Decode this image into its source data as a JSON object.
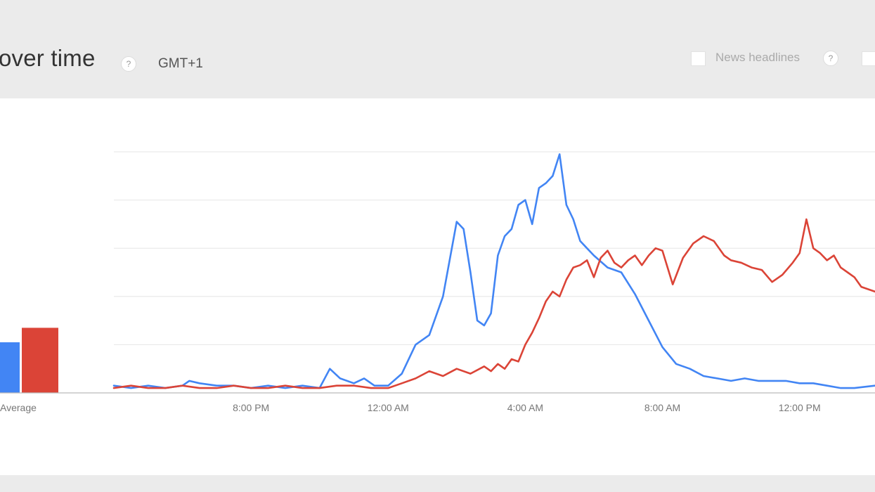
{
  "header": {
    "title": "over time",
    "help_title": "?",
    "timezone": "GMT+1",
    "news_headlines_label": "News headlines",
    "help_news": "?"
  },
  "colors": {
    "series_blue": "#4285f4",
    "series_red": "#db4437",
    "grid": "#e6e6e6",
    "axis": "#bbbbbb"
  },
  "icons": [
    "help-icon",
    "checkbox-icon"
  ],
  "chart_data": [
    {
      "type": "bar",
      "categories": [
        "Average"
      ],
      "series": [
        {
          "color": "#4285f4",
          "values": [
            21
          ]
        },
        {
          "color": "#db4437",
          "values": [
            27
          ]
        }
      ],
      "ylim": [
        0,
        100
      ]
    },
    {
      "type": "line",
      "x_unit": "hours since 4:00 PM",
      "ylim": [
        0,
        100
      ],
      "grid": "horizontal",
      "xticks": [
        {
          "x": 4,
          "label": "8:00 PM"
        },
        {
          "x": 8,
          "label": "12:00 AM"
        },
        {
          "x": 12,
          "label": "4:00 AM"
        },
        {
          "x": 16,
          "label": "8:00 AM"
        },
        {
          "x": 20,
          "label": "12:00 PM"
        }
      ],
      "xlim": [
        0,
        22.2
      ],
      "series": [
        {
          "color": "#4285f4",
          "x": [
            0.0,
            0.5,
            1.0,
            1.5,
            2.0,
            2.2,
            2.5,
            3.0,
            3.5,
            4.0,
            4.5,
            5.0,
            5.5,
            6.0,
            6.3,
            6.6,
            7.0,
            7.3,
            7.6,
            8.0,
            8.4,
            8.8,
            9.2,
            9.6,
            10.0,
            10.2,
            10.4,
            10.6,
            10.8,
            11.0,
            11.2,
            11.4,
            11.6,
            11.8,
            12.0,
            12.2,
            12.4,
            12.6,
            12.8,
            13.0,
            13.2,
            13.4,
            13.6,
            13.8,
            14.0,
            14.4,
            14.8,
            15.2,
            15.6,
            16.0,
            16.4,
            16.8,
            17.2,
            17.6,
            18.0,
            18.4,
            18.8,
            19.2,
            19.6,
            20.0,
            20.4,
            20.8,
            21.2,
            21.6,
            22.2
          ],
          "values": [
            3,
            2,
            3,
            2,
            3,
            5,
            4,
            3,
            3,
            2,
            3,
            2,
            3,
            2,
            10,
            6,
            4,
            6,
            3,
            3,
            8,
            20,
            24,
            40,
            71,
            68,
            50,
            30,
            28,
            33,
            57,
            65,
            68,
            78,
            80,
            70,
            85,
            87,
            90,
            99,
            78,
            72,
            63,
            60,
            57,
            52,
            50,
            41,
            30,
            19,
            12,
            10,
            7,
            6,
            5,
            6,
            5,
            5,
            5,
            4,
            4,
            3,
            2,
            2,
            3
          ]
        },
        {
          "color": "#db4437",
          "x": [
            0.0,
            0.5,
            1.0,
            1.5,
            2.0,
            2.5,
            3.0,
            3.5,
            4.0,
            4.5,
            5.0,
            5.5,
            6.0,
            6.5,
            7.0,
            7.5,
            8.0,
            8.4,
            8.8,
            9.2,
            9.6,
            10.0,
            10.4,
            10.8,
            11.0,
            11.2,
            11.4,
            11.6,
            11.8,
            12.0,
            12.2,
            12.4,
            12.6,
            12.8,
            13.0,
            13.2,
            13.4,
            13.6,
            13.8,
            14.0,
            14.2,
            14.4,
            14.6,
            14.8,
            15.0,
            15.2,
            15.4,
            15.6,
            15.8,
            16.0,
            16.3,
            16.6,
            16.9,
            17.2,
            17.5,
            17.8,
            18.0,
            18.3,
            18.6,
            18.9,
            19.2,
            19.5,
            19.8,
            20.0,
            20.2,
            20.4,
            20.6,
            20.8,
            21.0,
            21.2,
            21.4,
            21.6,
            21.8,
            22.2
          ],
          "values": [
            2,
            3,
            2,
            2,
            3,
            2,
            2,
            3,
            2,
            2,
            3,
            2,
            2,
            3,
            3,
            2,
            2,
            4,
            6,
            9,
            7,
            10,
            8,
            11,
            9,
            12,
            10,
            14,
            13,
            20,
            25,
            31,
            38,
            42,
            40,
            47,
            52,
            53,
            55,
            48,
            56,
            59,
            54,
            52,
            55,
            57,
            53,
            57,
            60,
            59,
            45,
            56,
            62,
            65,
            63,
            57,
            55,
            54,
            52,
            51,
            46,
            49,
            54,
            58,
            72,
            60,
            58,
            55,
            57,
            52,
            50,
            48,
            44,
            42
          ]
        }
      ]
    }
  ]
}
